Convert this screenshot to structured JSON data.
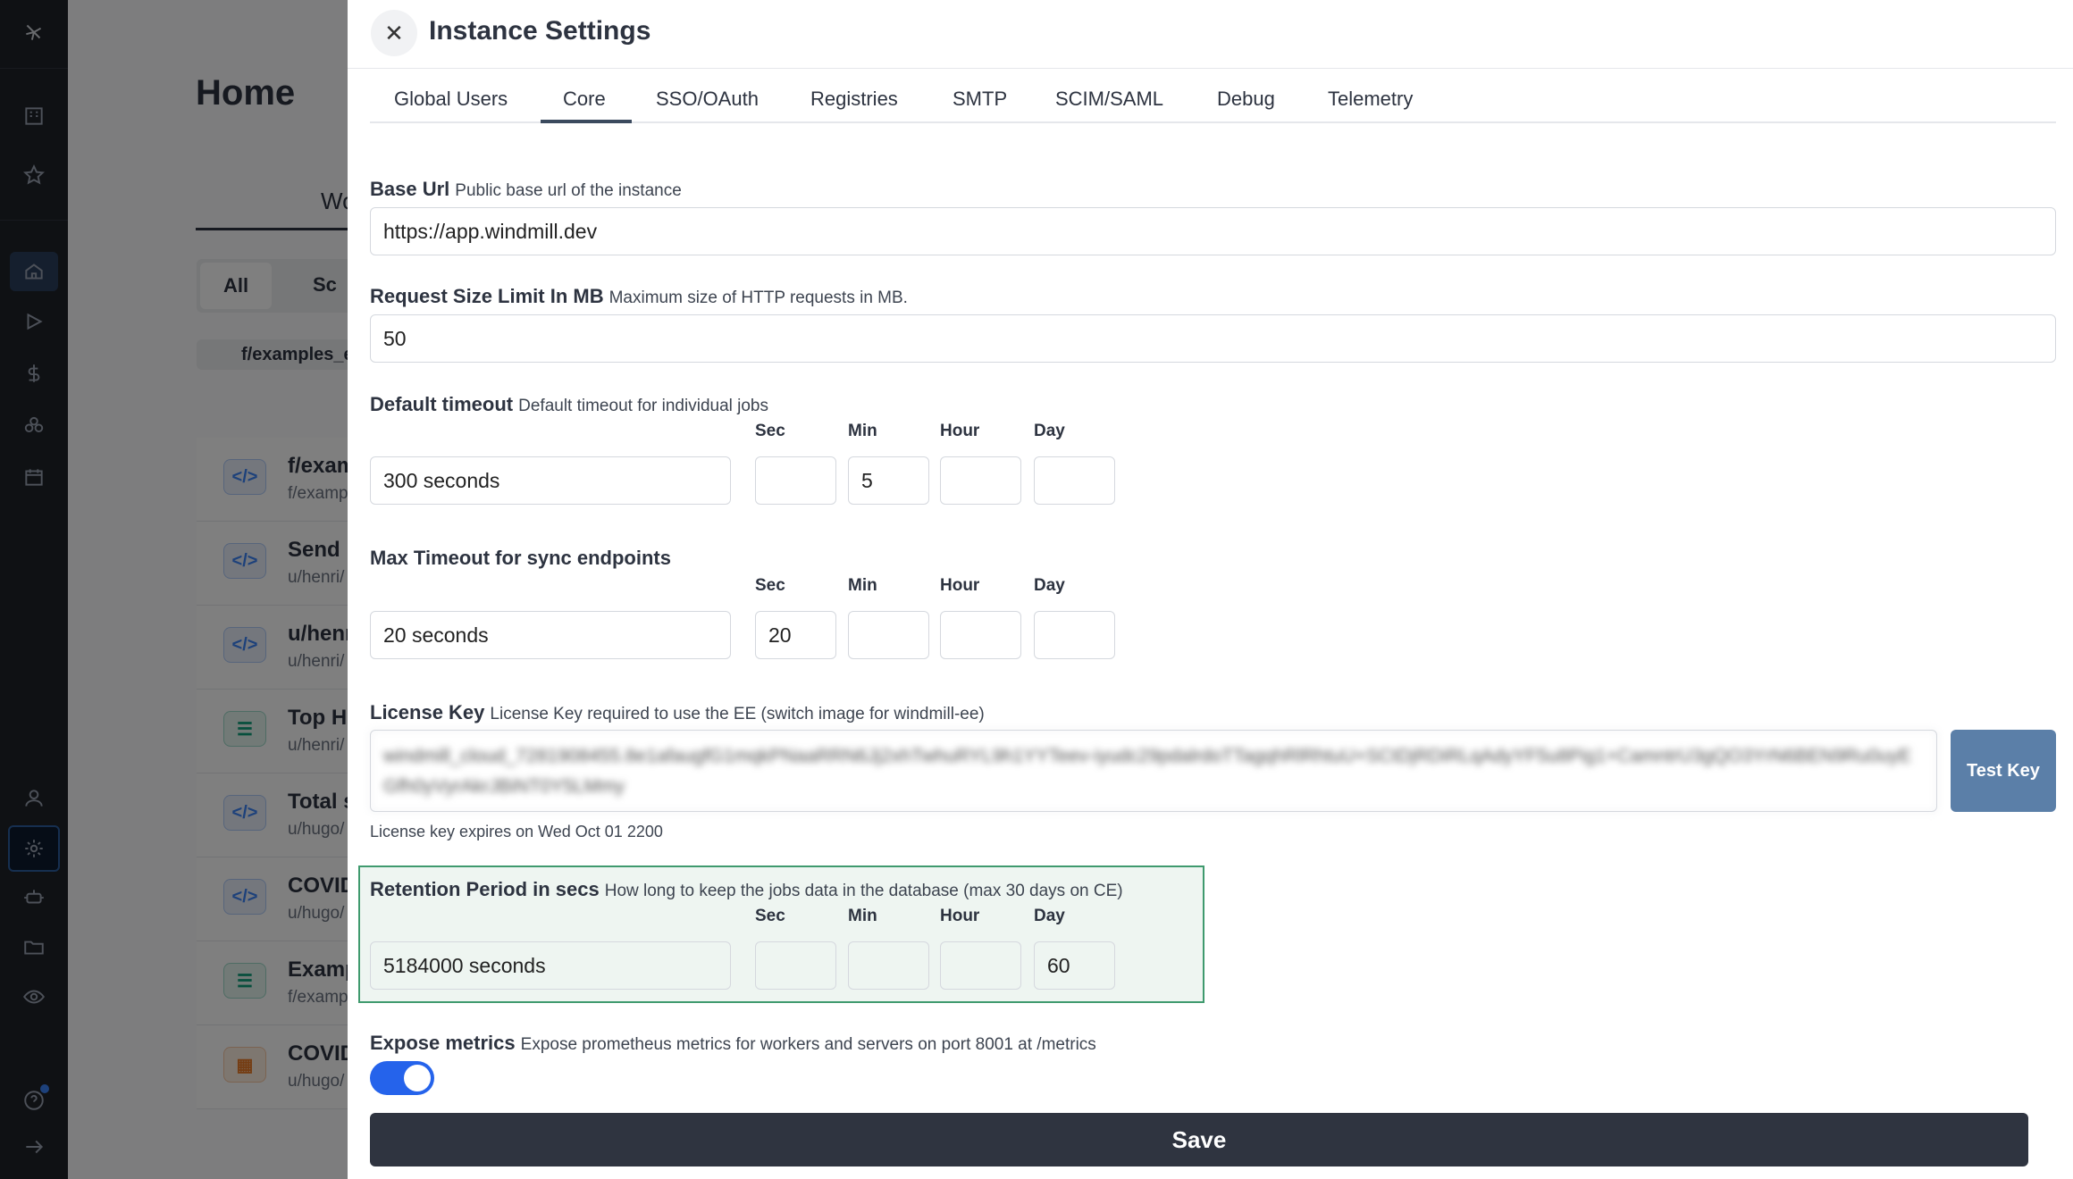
{
  "background": {
    "page_title": "Home",
    "workspace_tab": "Workspa",
    "filter_all": "All",
    "filter_scripts": "Sc",
    "folder_chip": "f/examples_e",
    "rows": [
      {
        "title": "f/exam",
        "subtitle": "f/examp",
        "kind": "script"
      },
      {
        "title": "Send r",
        "subtitle": "u/henri/",
        "kind": "script"
      },
      {
        "title": "u/henr",
        "subtitle": "u/henri/",
        "kind": "script"
      },
      {
        "title": "Top HI",
        "subtitle": "u/henri/",
        "kind": "flow"
      },
      {
        "title": "Total s",
        "subtitle": "u/hugo/",
        "kind": "script"
      },
      {
        "title": "COVID",
        "subtitle": "u/hugo/",
        "kind": "script"
      },
      {
        "title": "Examp",
        "subtitle": "f/examp",
        "kind": "flow"
      },
      {
        "title": "COVID",
        "subtitle": "u/hugo/",
        "kind": "app"
      }
    ]
  },
  "drawer": {
    "title": "Instance Settings",
    "tabs": [
      "Global Users",
      "Core",
      "SSO/OAuth",
      "Registries",
      "SMTP",
      "SCIM/SAML",
      "Debug",
      "Telemetry"
    ],
    "active_tab": "Core",
    "base_url": {
      "label": "Base Url",
      "desc": "Public base url of the instance",
      "value": "https://app.windmill.dev"
    },
    "request_size": {
      "label": "Request Size Limit In MB",
      "desc": "Maximum size of HTTP requests in MB.",
      "value": "50"
    },
    "unit_labels": {
      "sec": "Sec",
      "min": "Min",
      "hour": "Hour",
      "day": "Day"
    },
    "default_timeout": {
      "label": "Default timeout",
      "desc": "Default timeout for individual jobs",
      "value": "300 seconds",
      "sec": "",
      "min": "5",
      "hour": "",
      "day": ""
    },
    "max_timeout": {
      "label": "Max Timeout for sync endpoints",
      "desc": "",
      "value": "20 seconds",
      "sec": "20",
      "min": "",
      "hour": "",
      "day": ""
    },
    "license": {
      "label": "License Key",
      "desc": "License Key required to use the EE (switch image for windmill-ee)",
      "value": "windmill_cloud_7281908455.8e1afaugfG1mqkPNaaRRN6Jj2xhTwhuRYL9h1YYTeev-iyudc29pdalrdoTTagqhRlRhtuU+SCtDjRDiRLqAdyYF5u8Pig1+CamntrU3gQO3YrN6BEN9Ru0uyEGfh0yVyrAkrJBiNT0Y5LMmy",
      "test_button": "Test Key",
      "expires": "License key expires on Wed Oct 01 2200"
    },
    "retention": {
      "label": "Retention Period in secs",
      "desc": "How long to keep the jobs data in the database (max 30 days on CE)",
      "value": "5184000 seconds",
      "sec": "",
      "min": "",
      "hour": "",
      "day": "60"
    },
    "expose_metrics": {
      "label": "Expose metrics",
      "desc": "Expose prometheus metrics for workers and servers on port 8001 at /metrics",
      "enabled": true
    },
    "save_label": "Save"
  },
  "colors": {
    "accent": "#2563eb",
    "test_key": "#5b7fa8",
    "save": "#2f3440",
    "highlight_border": "#3f9a6e",
    "highlight_bg": "#eef5f1"
  }
}
